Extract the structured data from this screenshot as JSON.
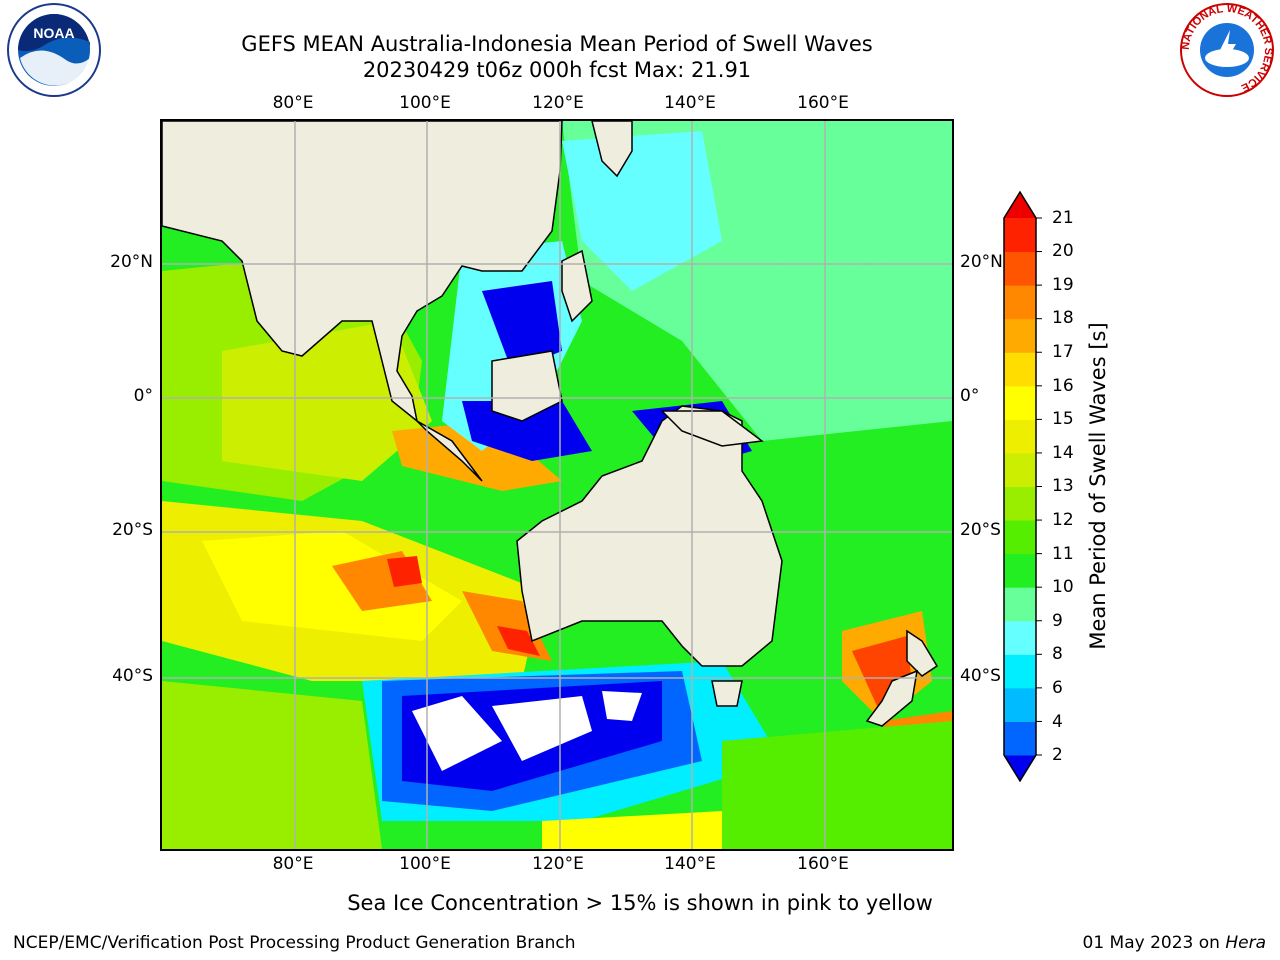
{
  "header": {
    "title_line1": "GEFS MEAN Australia-Indonesia Mean Period of Swell Waves",
    "title_line2": "20230429 t06z 000h fcst   Max: 21.91"
  },
  "axes": {
    "lon_labels": [
      "80°E",
      "100°E",
      "120°E",
      "140°E",
      "160°E"
    ],
    "lat_labels": [
      "20°N",
      "0°",
      "20°S",
      "40°S"
    ]
  },
  "colorbar": {
    "label": "Mean Period of Swell Waves [s]",
    "ticks": [
      "2",
      "4",
      "6",
      "8",
      "9",
      "10",
      "11",
      "12",
      "13",
      "14",
      "15",
      "16",
      "17",
      "18",
      "19",
      "20",
      "21"
    ],
    "colors": [
      "#0000ee",
      "#0066ff",
      "#00bbff",
      "#00eeff",
      "#66ffff",
      "#66ff99",
      "#22ee22",
      "#55ee00",
      "#99ee00",
      "#ccee00",
      "#eeee00",
      "#ffff00",
      "#ffdd00",
      "#ffaa00",
      "#ff8800",
      "#ff5500",
      "#ff2200",
      "#ee0000"
    ]
  },
  "map_colors": {
    "land": "#efedde",
    "grid": "#b0b0b0"
  },
  "logos": {
    "noaa_text": "NOAA",
    "nws_ring_text": "NATIONAL WEATHER SERVICE"
  },
  "notes": {
    "ice": "Sea Ice Concentration > 15% is shown in pink to yellow"
  },
  "footer": {
    "left": "NCEP/EMC/Verification Post Processing Product Generation Branch",
    "right_date": "01 May 2023 on ",
    "right_host": "Hera"
  }
}
